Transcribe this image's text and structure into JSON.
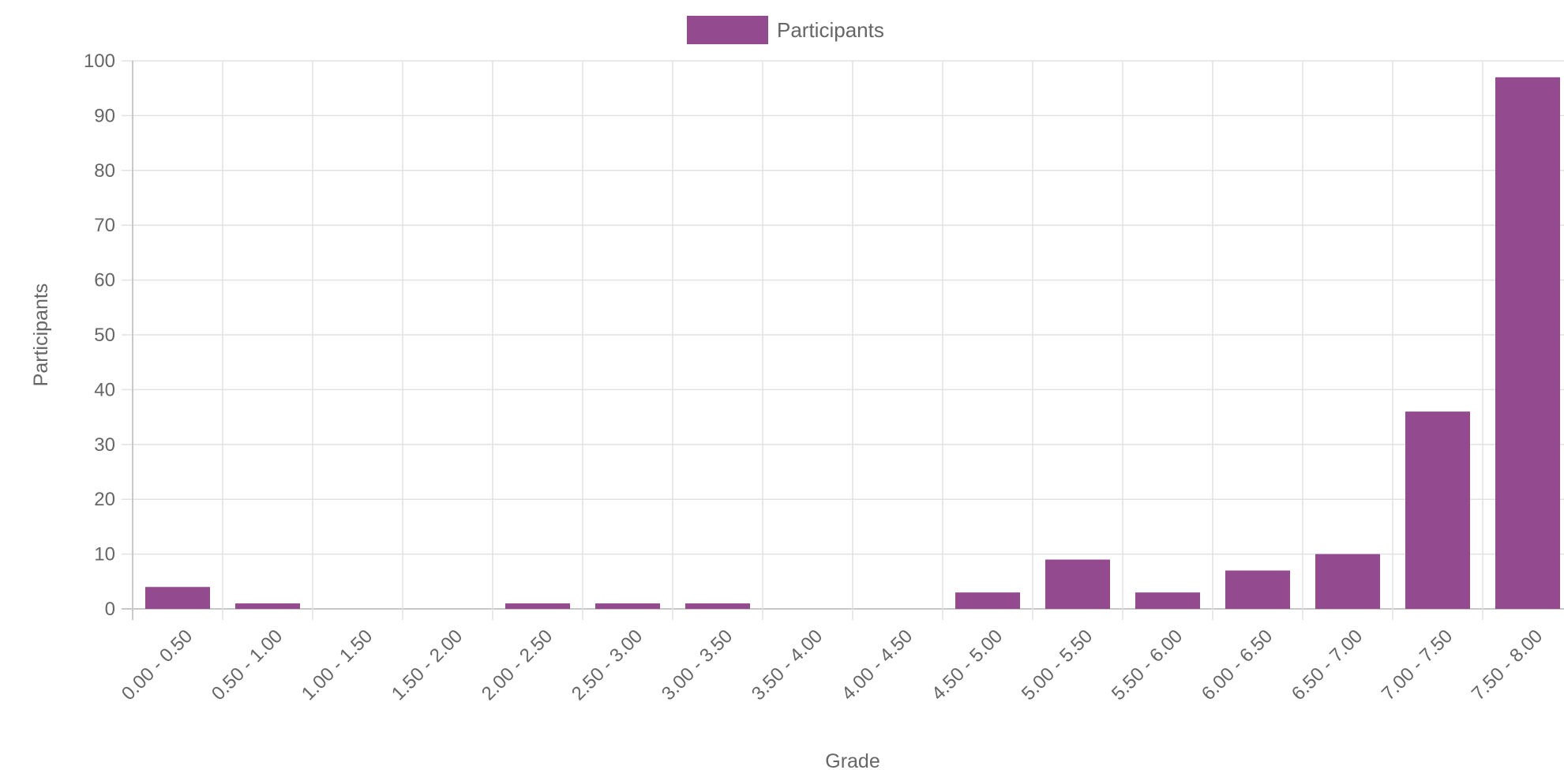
{
  "chart_data": {
    "type": "bar",
    "xlabel": "Grade",
    "ylabel": "Participants",
    "ylim": [
      0,
      100
    ],
    "y_ticks": [
      0,
      10,
      20,
      30,
      40,
      50,
      60,
      70,
      80,
      90,
      100
    ],
    "grid": true,
    "legend_position": "top-center",
    "categories": [
      "0.00 - 0.50",
      "0.50 - 1.00",
      "1.00 - 1.50",
      "1.50 - 2.00",
      "2.00 - 2.50",
      "2.50 - 3.00",
      "3.00 - 3.50",
      "3.50 - 4.00",
      "4.00 - 4.50",
      "4.50 - 5.00",
      "5.00 - 5.50",
      "5.50 - 6.00",
      "6.00 - 6.50",
      "6.50 - 7.00",
      "7.00 - 7.50",
      "7.50 - 8.00"
    ],
    "series": [
      {
        "name": "Participants",
        "color": "#944a8f",
        "values": [
          4,
          1,
          0,
          0,
          1,
          1,
          1,
          0,
          0,
          3,
          9,
          3,
          7,
          10,
          36,
          97
        ]
      }
    ]
  },
  "colors": {
    "bar": "#944a8f",
    "grid": "#e2e2e2",
    "axis_line": "#c8c8c8",
    "text": "#666666"
  }
}
